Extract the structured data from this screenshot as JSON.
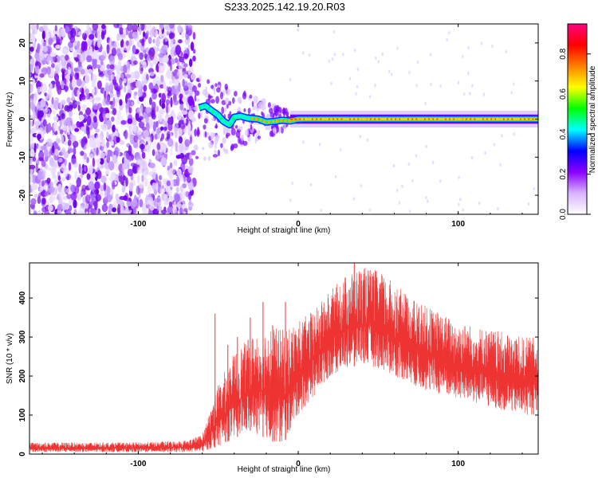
{
  "figure": {
    "title": "S233.2025.142.19.20.R03"
  },
  "chart_data": [
    {
      "type": "heatmap",
      "xlabel": "Height of straight line (km)",
      "ylabel": "Frequency (Hz)",
      "xlim": [
        -168,
        150
      ],
      "ylim": [
        -25,
        25
      ],
      "xticks": [
        -100,
        0,
        100
      ],
      "yticks": [
        -20,
        -10,
        0,
        10,
        20
      ],
      "grid": false,
      "noise_region_x": [
        -168,
        -65
      ],
      "transition_region_x": [
        -65,
        -5
      ],
      "signal_frequency_hz": 0,
      "signal_x_range": [
        -62,
        150
      ],
      "track": [
        {
          "x": -62,
          "y": 3.0
        },
        {
          "x": -58,
          "y": 3.5
        },
        {
          "x": -55,
          "y": 2.5
        },
        {
          "x": -50,
          "y": 1.0
        },
        {
          "x": -47,
          "y": -0.5
        },
        {
          "x": -43,
          "y": -1.5
        },
        {
          "x": -40,
          "y": 0.5
        },
        {
          "x": -36,
          "y": 0.8
        },
        {
          "x": -32,
          "y": 0.3
        },
        {
          "x": -25,
          "y": 0.0
        },
        {
          "x": -20,
          "y": -0.8
        },
        {
          "x": -15,
          "y": -0.6
        },
        {
          "x": -10,
          "y": -0.3
        },
        {
          "x": -5,
          "y": -0.5
        },
        {
          "x": 0,
          "y": 0.0
        },
        {
          "x": 150,
          "y": 0.0
        }
      ],
      "colorbar": {
        "label": "Normalized spectral amplitude",
        "range": [
          0,
          0.95
        ],
        "ticks": [
          "0.0",
          "0.2",
          "0.4",
          "0.6",
          "0.8"
        ],
        "colors": [
          "#ffffff",
          "#d9b3ff",
          "#8a00ff",
          "#0000ff",
          "#00ffff",
          "#00ff00",
          "#ffff00",
          "#ff8000",
          "#ff0000",
          "#ff0080"
        ]
      }
    },
    {
      "type": "line",
      "xlabel": "Height of straight line (km)",
      "ylabel": "SNR (10 * v/v)",
      "xlim": [
        -168,
        150
      ],
      "ylim": [
        0,
        490
      ],
      "xticks": [
        -100,
        0,
        100
      ],
      "yticks": [
        0,
        100,
        200,
        300,
        400
      ],
      "grid": false,
      "color": "#ee3333",
      "envelope": {
        "x": [
          -168,
          -100,
          -70,
          -60,
          -50,
          -40,
          -30,
          -20,
          -10,
          0,
          10,
          20,
          30,
          40,
          50,
          60,
          70,
          80,
          90,
          100,
          110,
          120,
          130,
          140,
          150
        ],
        "upper": [
          30,
          30,
          35,
          50,
          180,
          260,
          300,
          330,
          320,
          340,
          370,
          420,
          460,
          480,
          470,
          440,
          400,
          380,
          360,
          340,
          330,
          320,
          310,
          300,
          300
        ],
        "lower": [
          5,
          5,
          5,
          5,
          20,
          40,
          60,
          40,
          20,
          100,
          150,
          200,
          220,
          230,
          220,
          200,
          180,
          160,
          150,
          140,
          130,
          120,
          110,
          100,
          100
        ]
      },
      "spikes": [
        {
          "x": -52,
          "y": 360
        },
        {
          "x": -44,
          "y": 280
        },
        {
          "x": -38,
          "y": 300
        },
        {
          "x": -30,
          "y": 350
        },
        {
          "x": -22,
          "y": 390
        },
        {
          "x": -16,
          "y": 330
        },
        {
          "x": -8,
          "y": 390
        },
        {
          "x": 35,
          "y": 490
        }
      ]
    }
  ]
}
